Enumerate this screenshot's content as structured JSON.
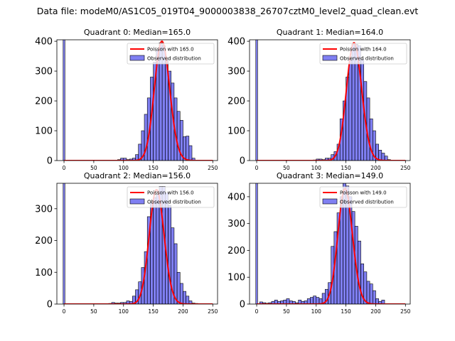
{
  "suptitle": "Data file: modeM0/AS1C05_019T04_9000003838_26707cztM0_level2_quad_clean.evt",
  "colors": {
    "bar": "#0000e6",
    "bar_alpha": 0.5,
    "poisson": "#ff0000",
    "edge": "#000000"
  },
  "chart_data": [
    {
      "type": "bar",
      "title": "Quadrant 0: Median=165.0",
      "median": 165.0,
      "legend": {
        "position": "top-right",
        "line_label": "Poisson with 165.0",
        "bar_label": "Observed distribution"
      },
      "xlim": [
        -12,
        258
      ],
      "ylim": [
        0,
        405
      ],
      "xticks": [
        0,
        50,
        100,
        150,
        200,
        250
      ],
      "yticks": [
        0,
        100,
        200,
        300,
        400
      ],
      "zero_bar": {
        "x": 0,
        "value": 1000
      },
      "bin_width": 5,
      "bins_start": 85,
      "values": [
        1,
        3,
        8,
        8,
        3,
        5,
        8,
        20,
        55,
        100,
        155,
        210,
        280,
        330,
        370,
        395,
        385,
        340,
        300,
        260,
        210,
        165,
        135,
        80,
        82,
        50,
        8,
        1
      ],
      "poisson_peak": 400
    },
    {
      "type": "bar",
      "title": "Quadrant 1: Median=164.0",
      "median": 164.0,
      "legend": {
        "position": "top-right",
        "line_label": "Poisson with 164.0",
        "bar_label": "Observed distribution"
      },
      "xlim": [
        -12,
        258
      ],
      "ylim": [
        0,
        405
      ],
      "xticks": [
        0,
        50,
        100,
        150,
        200,
        250
      ],
      "yticks": [
        0,
        100,
        200,
        300,
        400
      ],
      "zero_bar": {
        "x": 0,
        "value": 1000
      },
      "bin_width": 5,
      "bins_start": 95,
      "values": [
        2,
        5,
        5,
        3,
        8,
        8,
        20,
        30,
        55,
        140,
        200,
        280,
        340,
        390,
        390,
        385,
        340,
        265,
        210,
        140,
        100,
        55,
        35,
        25,
        15,
        3,
        1
      ],
      "poisson_peak": 395
    },
    {
      "type": "bar",
      "title": "Quadrant 2: Median=156.0",
      "median": 156.0,
      "legend": {
        "position": "top-right",
        "line_label": "Poisson with 156.0",
        "bar_label": "Observed distribution"
      },
      "xlim": [
        -12,
        258
      ],
      "ylim": [
        0,
        380
      ],
      "xticks": [
        0,
        50,
        100,
        150,
        200,
        250
      ],
      "yticks": [
        0,
        100,
        200,
        300
      ],
      "zero_bar": {
        "x": 0,
        "value": 1000
      },
      "bin_width": 5,
      "bins_start": 75,
      "values": [
        2,
        5,
        3,
        3,
        5,
        5,
        10,
        8,
        25,
        45,
        70,
        115,
        165,
        275,
        320,
        335,
        345,
        370,
        370,
        350,
        310,
        240,
        190,
        100,
        65,
        40,
        25,
        10,
        3,
        2
      ],
      "poisson_peak": 360
    },
    {
      "type": "bar",
      "title": "Quadrant 3: Median=149.0",
      "median": 149.0,
      "legend": {
        "position": "top-right",
        "line_label": "Poisson with 149.0",
        "bar_label": "Observed distribution"
      },
      "xlim": [
        -12,
        258
      ],
      "ylim": [
        0,
        450
      ],
      "xticks": [
        0,
        50,
        100,
        150,
        200,
        250
      ],
      "yticks": [
        0,
        100,
        200,
        300,
        400
      ],
      "zero_bar": {
        "x": 0,
        "value": 1000
      },
      "bin_width": 5,
      "bins_start": 5,
      "values": [
        8,
        5,
        3,
        5,
        10,
        15,
        10,
        12,
        15,
        20,
        12,
        10,
        5,
        15,
        10,
        12,
        20,
        25,
        30,
        25,
        20,
        40,
        55,
        80,
        215,
        270,
        340,
        400,
        450,
        440,
        400,
        345,
        290,
        235,
        150,
        120,
        85,
        75,
        50,
        20,
        10,
        15,
        1
      ],
      "poisson_peak": 430
    }
  ]
}
